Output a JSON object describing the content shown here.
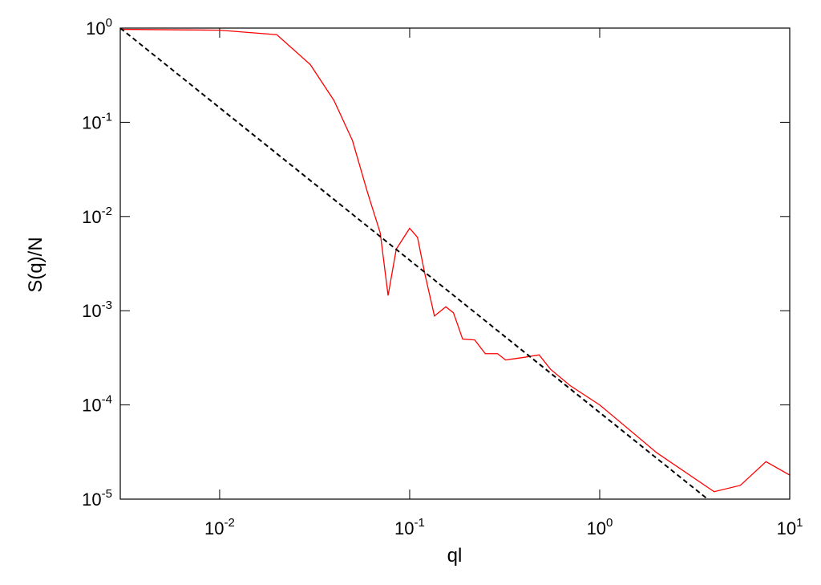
{
  "chart_data": {
    "type": "line",
    "xlabel": "ql",
    "ylabel": "S(q)/N",
    "xscale": "log",
    "yscale": "log",
    "xlim": [
      0.003,
      10
    ],
    "ylim": [
      1e-05,
      1
    ],
    "xticks": [
      {
        "value": 0.01,
        "label": "10",
        "exponent": "-2"
      },
      {
        "value": 0.1,
        "label": "10",
        "exponent": "-1"
      },
      {
        "value": 1,
        "label": "10",
        "exponent": "0"
      },
      {
        "value": 10,
        "label": "10",
        "exponent": "1"
      }
    ],
    "yticks": [
      {
        "value": 1e-05,
        "label": "10",
        "exponent": "-5"
      },
      {
        "value": 0.0001,
        "label": "10",
        "exponent": "-4"
      },
      {
        "value": 0.001,
        "label": "10",
        "exponent": "-3"
      },
      {
        "value": 0.01,
        "label": "10",
        "exponent": "-2"
      },
      {
        "value": 0.1,
        "label": "10",
        "exponent": "-1"
      },
      {
        "value": 1,
        "label": "10",
        "exponent": "0"
      }
    ],
    "series": [
      {
        "color": "#ff0000",
        "dash": false,
        "x": [
          0.003,
          0.01,
          0.02,
          0.03,
          0.04,
          0.05,
          0.06,
          0.07,
          0.077,
          0.085,
          0.1,
          0.11,
          0.12,
          0.135,
          0.155,
          0.17,
          0.19,
          0.22,
          0.25,
          0.29,
          0.32,
          0.4,
          0.48,
          0.55,
          0.7,
          1,
          2,
          4,
          5.5,
          7.5,
          10
        ],
        "values": [
          0.97,
          0.95,
          0.85,
          0.41,
          0.17,
          0.064,
          0.018,
          0.0067,
          0.00145,
          0.0045,
          0.0075,
          0.006,
          0.0025,
          0.00088,
          0.0011,
          0.00095,
          0.0005,
          0.00049,
          0.00035,
          0.00035,
          0.0003,
          0.00032,
          0.00034,
          0.00024,
          0.00016,
          0.0001,
          3.1e-05,
          1.2e-05,
          1.4e-05,
          2.5e-05,
          1.8e-05
        ]
      },
      {
        "color": "#000000",
        "dash": true,
        "x": [
          0.003,
          3.7
        ],
        "values": [
          1,
          1e-05
        ]
      }
    ]
  }
}
